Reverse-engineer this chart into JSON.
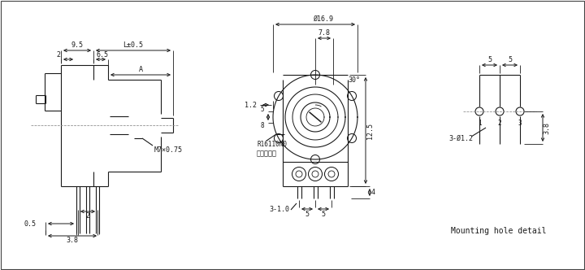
{
  "bg_color": "#ffffff",
  "line_color": "#1a1a1a",
  "dim_color": "#1a1a1a",
  "font_size": 6.5,
  "labels": {
    "dim_95": "9.5",
    "dim_l05": "L±0.5",
    "dim_2a": "2",
    "dim_65": "6.5",
    "dim_A": "A",
    "dim_M7": "M7×0.75",
    "dim_2b": "2",
    "dim_05": "0.5",
    "dim_38a": "3.8",
    "dim_dia169": "Ø16.9",
    "dim_78": "7.8",
    "dim_30": "30°",
    "dim_12": "1.2",
    "dim_5upper": "5",
    "dim_8lower": "8",
    "dim_125": "12.5",
    "dim_4": "4",
    "dim_31": "3-1.0",
    "dim_5a": "5",
    "dim_5b": "5",
    "label_R16110N0": "R16110N0",
    "label_cn": "无此定位贵",
    "dim_3phi12": "3-Ø1.2",
    "dim_38b": "3.8",
    "mhd_5a": "5",
    "mhd_5b": "5",
    "label_mhd": "Mounting hole detail",
    "pin1": "1",
    "pin2": "2",
    "pin3": "3"
  }
}
